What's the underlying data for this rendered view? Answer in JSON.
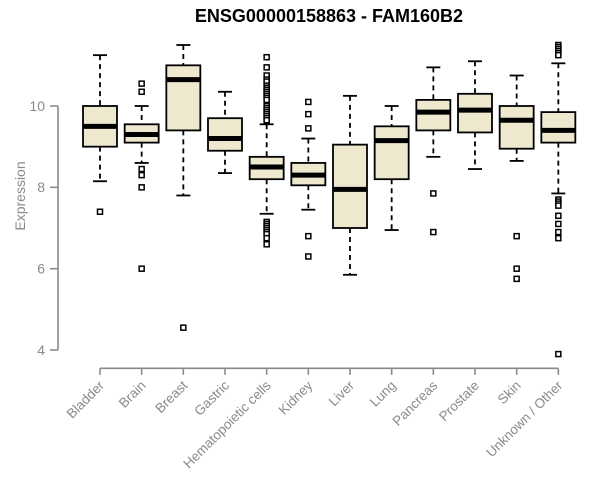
{
  "chart_data": {
    "type": "boxplot",
    "title": "ENSG00000158863 - FAM160B2",
    "xlabel": "",
    "ylabel": "Expression",
    "y_ticks": [
      4,
      6,
      8,
      10
    ],
    "ylim": [
      3.6,
      11.8
    ],
    "grid": false,
    "legend_position": "none",
    "categories": [
      "Bladder",
      "Brain",
      "Breast",
      "Gastric",
      "Hematopoietic cells",
      "Kidney",
      "Liver",
      "Lung",
      "Pancreas",
      "Prostate",
      "Skin",
      "Unknown / Other"
    ],
    "series": [
      {
        "category": "Bladder",
        "low": 8.15,
        "q1": 9.0,
        "median": 9.5,
        "q3": 10.0,
        "high": 11.25,
        "outliers": [
          7.4
        ]
      },
      {
        "category": "Brain",
        "low": 8.6,
        "q1": 9.1,
        "median": 9.3,
        "q3": 9.55,
        "high": 10.0,
        "outliers": [
          10.55,
          10.35,
          8.45,
          8.3,
          8.0,
          6.0
        ]
      },
      {
        "category": "Breast",
        "low": 7.8,
        "q1": 9.4,
        "median": 10.65,
        "q3": 11.0,
        "high": 11.5,
        "outliers": [
          4.55
        ]
      },
      {
        "category": "Gastric",
        "low": 8.35,
        "q1": 8.9,
        "median": 9.2,
        "q3": 9.7,
        "high": 10.35,
        "outliers": []
      },
      {
        "category": "Hematopoietic cells",
        "low": 7.35,
        "q1": 8.2,
        "median": 8.5,
        "q3": 8.75,
        "high": 9.55,
        "outliers": [
          11.2,
          10.95,
          10.75,
          10.65,
          10.6,
          10.5,
          10.45,
          10.4,
          10.35,
          10.3,
          10.25,
          10.2,
          10.15,
          10.0,
          9.95,
          9.9,
          9.85,
          9.8,
          9.75,
          9.7,
          9.65,
          7.15,
          7.1,
          7.05,
          7.0,
          6.95,
          6.9,
          6.85,
          6.75,
          6.6
        ]
      },
      {
        "category": "Kidney",
        "low": 7.45,
        "q1": 8.05,
        "median": 8.3,
        "q3": 8.6,
        "high": 9.2,
        "outliers": [
          10.1,
          9.8,
          9.45,
          6.8,
          6.3
        ]
      },
      {
        "category": "Liver",
        "low": 5.85,
        "q1": 7.0,
        "median": 7.95,
        "q3": 9.05,
        "high": 10.25,
        "outliers": []
      },
      {
        "category": "Lung",
        "low": 6.95,
        "q1": 8.2,
        "median": 9.15,
        "q3": 9.5,
        "high": 10.0,
        "outliers": []
      },
      {
        "category": "Pancreas",
        "low": 8.75,
        "q1": 9.4,
        "median": 9.85,
        "q3": 10.15,
        "high": 10.95,
        "outliers": [
          7.85,
          6.9
        ]
      },
      {
        "category": "Prostate",
        "low": 8.45,
        "q1": 9.35,
        "median": 9.9,
        "q3": 10.3,
        "high": 11.1,
        "outliers": []
      },
      {
        "category": "Skin",
        "low": 8.65,
        "q1": 8.95,
        "median": 9.65,
        "q3": 10.0,
        "high": 10.75,
        "outliers": [
          6.8,
          6.0,
          5.75
        ]
      },
      {
        "category": "Unknown / Other",
        "low": 7.85,
        "q1": 9.1,
        "median": 9.4,
        "q3": 9.85,
        "high": 11.05,
        "outliers": [
          11.5,
          11.45,
          11.4,
          11.35,
          11.3,
          11.25,
          7.7,
          7.65,
          7.6,
          7.55,
          7.3,
          7.1,
          6.9,
          6.75,
          3.9
        ]
      }
    ],
    "colors": {
      "box_fill": "#EDE8CE",
      "box_border": "#000000",
      "median": "#000000",
      "whisker": "#000000",
      "outlier_fill": "#FFFFFF",
      "outlier_border": "#000000",
      "axis": "#8A8A8A",
      "tick_label": "#8A8A8A",
      "title": "#000000",
      "background": "#FFFFFF"
    }
  }
}
